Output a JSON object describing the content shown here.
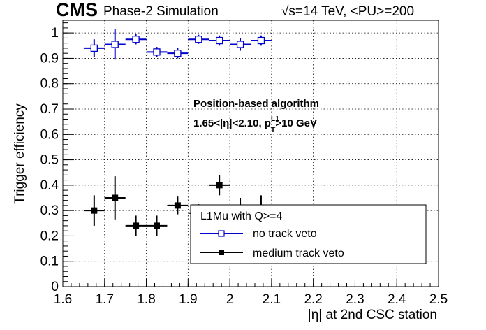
{
  "header": {
    "cms": "CMS",
    "subtitle": "Phase-2 Simulation",
    "energy": "√s=14 TeV, <PU>=200"
  },
  "annotation": {
    "line1": "Position-based algorithm",
    "line2_a": "1.65<|η|<2.10, p",
    "line2_sup": "L1",
    "line2_sub": "T",
    "line2_b": ">10 GeV"
  },
  "legend": {
    "title": "L1Mu with Q>=4",
    "entries": [
      "no track veto",
      "medium track veto"
    ]
  },
  "colors": {
    "series1": "#0000cc",
    "series2": "#000000",
    "grid": "#000000"
  },
  "chart_data": {
    "type": "scatter",
    "title": "",
    "xlabel": "|η| at 2nd CSC station",
    "ylabel": "Trigger efficiency",
    "xlim": [
      1.6,
      2.5
    ],
    "ylim": [
      0,
      1.05
    ],
    "grid": true,
    "legend_position": "bottom-right",
    "x_ticks": [
      "1.6",
      "1.7",
      "1.8",
      "1.9",
      "2",
      "2.1",
      "2.2",
      "2.3",
      "2.4",
      "2.5"
    ],
    "y_ticks": [
      "0",
      "0.1",
      "0.2",
      "0.3",
      "0.4",
      "0.5",
      "0.6",
      "0.7",
      "0.8",
      "0.9",
      "1"
    ],
    "series": [
      {
        "name": "no track veto",
        "marker": "open-square",
        "x": [
          1.675,
          1.725,
          1.775,
          1.825,
          1.875,
          1.925,
          1.975,
          2.025,
          2.075
        ],
        "xerr": 0.025,
        "y": [
          0.94,
          0.955,
          0.975,
          0.925,
          0.92,
          0.975,
          0.97,
          0.955,
          0.97
        ],
        "yerr": [
          0.035,
          0.06,
          0.02,
          0.02,
          0.02,
          0.018,
          0.02,
          0.025,
          0.02
        ]
      },
      {
        "name": "medium track veto",
        "marker": "filled-square",
        "x": [
          1.675,
          1.725,
          1.775,
          1.825,
          1.875,
          1.925,
          1.975,
          2.025,
          2.075
        ],
        "xerr": 0.025,
        "y": [
          0.3,
          0.35,
          0.24,
          0.24,
          0.32,
          0.29,
          0.4,
          0.29,
          0.29
        ],
        "yerr": [
          0.06,
          0.085,
          0.04,
          0.04,
          0.035,
          0.035,
          0.04,
          0.06,
          0.07
        ]
      }
    ]
  }
}
